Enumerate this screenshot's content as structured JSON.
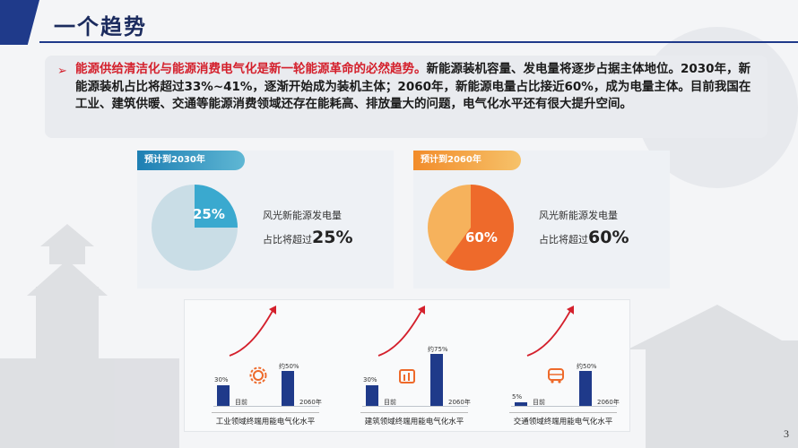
{
  "header": {
    "title": "一个趋势"
  },
  "summary": {
    "lead": "能源供给清洁化与能源消费电气化是新一轮能源革命的必然趋势。",
    "body": "新能源装机容量、发电量将逐步占据主体地位。2030年，新能源装机占比将超过33%~41%，逐渐开始成为装机主体；2060年，新能源电量占比接近60%，成为电量主体。目前我国在工业、建筑供暖、交通等能源消费领域还存在能耗高、排放量大的问题，电气化水平还有很大提升空间。"
  },
  "cards": [
    {
      "tag": "预计到2030年",
      "pie_label": "25%",
      "desc1": "风光新能源发电量",
      "desc2_prefix": "占比将超过",
      "desc2_value": "25%",
      "accent": "#3aa9cf",
      "rest": "#c9dde6"
    },
    {
      "tag": "预计到2060年",
      "pie_label": "60%",
      "desc1": "风光新能源发电量",
      "desc2_prefix": "占比将超过",
      "desc2_value": "60%",
      "accent": "#ee6a2b",
      "rest": "#f6b25c"
    }
  ],
  "chart_data": {
    "type": "bar",
    "groups": [
      {
        "caption": "工业领域终端用能电气化水平",
        "bars": [
          {
            "category": "目前",
            "label": "30%",
            "value": 30
          },
          {
            "category": "2060年",
            "label": "约50%",
            "value": 50
          }
        ]
      },
      {
        "caption": "建筑领域终端用能电气化水平",
        "bars": [
          {
            "category": "目前",
            "label": "30%",
            "value": 30
          },
          {
            "category": "2060年",
            "label": "约75%",
            "value": 75
          }
        ]
      },
      {
        "caption": "交通领域终端用能电气化水平",
        "bars": [
          {
            "category": "目前",
            "label": "5%",
            "value": 5
          },
          {
            "category": "2060年",
            "label": "约50%",
            "value": 50
          }
        ]
      }
    ],
    "pie": [
      {
        "title": "预计到2030年",
        "value": 25
      },
      {
        "title": "预计到2060年",
        "value": 60
      }
    ],
    "colors": {
      "bar": "#1f3a8a",
      "arrow": "#d4202c"
    }
  },
  "icons": [
    "gear-icon",
    "building-icon",
    "bus-icon"
  ],
  "page": {
    "number": "3"
  }
}
